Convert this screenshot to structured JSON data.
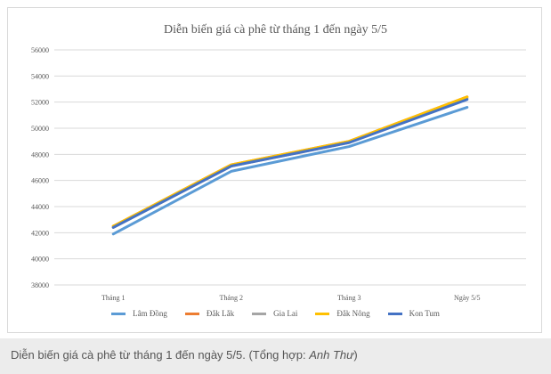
{
  "chart_data": {
    "type": "line",
    "title": "Diễn biến giá cà phê từ tháng 1 đến ngày 5/5",
    "categories": [
      "Tháng 1",
      "Tháng 2",
      "Tháng 3",
      "Ngày 5/5"
    ],
    "ylim": [
      38000,
      56000
    ],
    "yticks": [
      38000,
      40000,
      42000,
      44000,
      46000,
      48000,
      50000,
      52000,
      54000,
      56000
    ],
    "grid": true,
    "legend_position": "bottom",
    "series": [
      {
        "name": "Lâm Đồng",
        "color": "#5b9bd5",
        "values": [
          41900,
          46700,
          48600,
          51600
        ]
      },
      {
        "name": "Đắk Lắk",
        "color": "#ed7d31",
        "values": [
          42500,
          47200,
          49000,
          52400
        ]
      },
      {
        "name": "Gia Lai",
        "color": "#a5a5a5",
        "values": [
          42400,
          47100,
          48900,
          52300
        ]
      },
      {
        "name": "Đắk Nông",
        "color": "#ffc000",
        "values": [
          42500,
          47200,
          49000,
          52400
        ]
      },
      {
        "name": "Kon Tum",
        "color": "#4472c4",
        "values": [
          42400,
          47100,
          48900,
          52200
        ]
      }
    ]
  },
  "caption": {
    "text": "Diễn biến giá cà phê từ tháng 1 đến ngày 5/5. (Tổng hợp: ",
    "author": "Anh Thư",
    "close": ")"
  }
}
